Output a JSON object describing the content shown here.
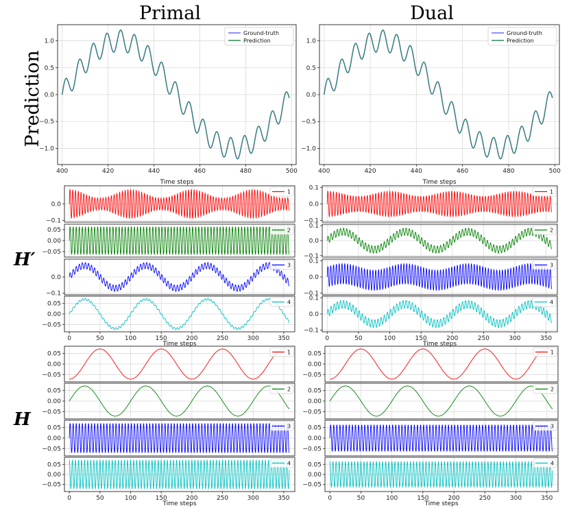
{
  "columns": [
    "Primal",
    "Dual"
  ],
  "ylabel": "Prediction",
  "row_labels": [
    "H′",
    "H"
  ],
  "colors": {
    "ground_truth": "#6b6bf5",
    "prediction": "#2e8b57",
    "series": [
      "#ff0000",
      "#008000",
      "#0000ff",
      "#00c0c0"
    ]
  },
  "chart_data": [
    {
      "id": "primal-prediction",
      "type": "line",
      "xlabel": "Time steps",
      "ylabel": "Prediction",
      "xlim": [
        398,
        502
      ],
      "ylim": [
        -1.3,
        1.3
      ],
      "xticks": [
        400,
        420,
        440,
        460,
        480,
        500
      ],
      "yticks": [
        -1.0,
        -0.5,
        0.0,
        0.5,
        1.0
      ],
      "ytick_labels": [
        "−1.0",
        "−0.5",
        "0.0",
        "0.5",
        "1.0"
      ],
      "x_range": [
        400,
        499
      ],
      "legend": "top-right",
      "grid": true,
      "series": [
        {
          "name": "Ground-truth",
          "color": "#6b6bf5",
          "formula": "sin(2π(x-400)/100)+0.2·sin(2π(x-400)/6)"
        },
        {
          "name": "Prediction",
          "color": "#2e8b57",
          "formula": "sin(2π(x-400)/100)+0.2·sin(2π(x-400)/6)"
        }
      ]
    },
    {
      "id": "dual-prediction",
      "type": "line",
      "xlabel": "Time steps",
      "ylabel": "",
      "xlim": [
        398,
        502
      ],
      "ylim": [
        -1.3,
        1.3
      ],
      "xticks": [
        400,
        420,
        440,
        460,
        480,
        500
      ],
      "yticks": [
        -1.0,
        -0.5,
        0.0,
        0.5,
        1.0
      ],
      "ytick_labels": [
        "−1.0",
        "−0.5",
        "0.0",
        "0.5",
        "1.0"
      ],
      "x_range": [
        400,
        499
      ],
      "legend": "top-right",
      "grid": true,
      "series": [
        {
          "name": "Ground-truth",
          "color": "#6b6bf5",
          "formula": "sin(2π(x-400)/100)+0.2·sin(2π(x-400)/6)"
        },
        {
          "name": "Prediction",
          "color": "#2e8b57",
          "formula": "sin(2π(x-400)/100)+0.2·sin(2π(x-400)/6)"
        }
      ]
    },
    {
      "id": "primal-Hp-1",
      "type": "line",
      "legend_label": "1",
      "color": "#ff0000",
      "xlim": [
        -8,
        368
      ],
      "ylim": [
        -0.11,
        0.11
      ],
      "yticks": [
        -0.1,
        0.0
      ],
      "ytick_labels": [
        "−0.1",
        "0.0"
      ],
      "x_range": [
        0,
        359
      ],
      "formula": "0.09·sin(2πx/4.5)·(0.7+0.3cos(2πx/100))"
    },
    {
      "id": "primal-Hp-2",
      "type": "line",
      "legend_label": "2",
      "color": "#008000",
      "xlim": [
        -8,
        368
      ],
      "ylim": [
        -0.075,
        0.075
      ],
      "yticks": [
        -0.05,
        0.0,
        0.05
      ],
      "ytick_labels": [
        "−0.05",
        "0.00",
        "0.05"
      ],
      "x_range": [
        0,
        359
      ],
      "formula": "0.065·sin(2πx/5)"
    },
    {
      "id": "primal-Hp-3",
      "type": "line",
      "legend_label": "3",
      "color": "#0000ff",
      "xlim": [
        -8,
        368
      ],
      "ylim": [
        -0.11,
        0.11
      ],
      "yticks": [
        -0.1,
        0.0
      ],
      "ytick_labels": [
        "−0.1",
        "0.0"
      ],
      "x_range": [
        0,
        359
      ],
      "formula": "0.07·sin(2πx/100)+0.02·sin(2πx/5)"
    },
    {
      "id": "primal-Hp-4",
      "type": "line",
      "legend_label": "4",
      "color": "#00c0c0",
      "xlim": [
        -8,
        368
      ],
      "ylim": [
        -0.085,
        0.085
      ],
      "yticks": [
        -0.05,
        0.0,
        0.05
      ],
      "ytick_labels": [
        "−0.05",
        "0.00",
        "0.05"
      ],
      "xticks": [
        0,
        50,
        100,
        150,
        200,
        250,
        300,
        350
      ],
      "xlabel": "Time steps",
      "x_range": [
        0,
        359
      ],
      "formula": "0.07·sin(2πx/100)+0.005·sin(2πx/5)"
    },
    {
      "id": "dual-Hp-1",
      "type": "line",
      "legend_label": "1",
      "color": "#ff0000",
      "xlim": [
        -8,
        368
      ],
      "ylim": [
        -0.11,
        0.11
      ],
      "yticks": [
        -0.1,
        0.0,
        0.1
      ],
      "ytick_labels": [
        "−0.1",
        "0.0",
        "0.1"
      ],
      "x_range": [
        0,
        359
      ],
      "formula": "0.08·sin(2πx/4.5)·(0.8+0.2cos(2πx/100))"
    },
    {
      "id": "dual-Hp-2",
      "type": "line",
      "legend_label": "2",
      "color": "#008000",
      "xlim": [
        -8,
        368
      ],
      "ylim": [
        -0.11,
        0.11
      ],
      "yticks": [
        -0.1,
        0.0,
        0.1
      ],
      "ytick_labels": [
        "−0.1",
        "0.0",
        "0.1"
      ],
      "x_range": [
        0,
        359
      ],
      "formula": "0.06·sin(2πx/100)+0.025·sin(2πx/5)"
    },
    {
      "id": "dual-Hp-3",
      "type": "line",
      "legend_label": "3",
      "color": "#0000ff",
      "xlim": [
        -8,
        368
      ],
      "ylim": [
        -0.11,
        0.11
      ],
      "yticks": [
        -0.1,
        0.0,
        0.1
      ],
      "ytick_labels": [
        "−0.1",
        "0.0",
        "0.1"
      ],
      "x_range": [
        0,
        359
      ],
      "formula": "0.065·sin(2πx/4.5)+0.02·sin(2πx/100)"
    },
    {
      "id": "dual-Hp-4",
      "type": "line",
      "legend_label": "4",
      "color": "#00c0c0",
      "xlim": [
        -8,
        368
      ],
      "ylim": [
        -0.11,
        0.11
      ],
      "yticks": [
        -0.1,
        0.0,
        0.1
      ],
      "ytick_labels": [
        "−0.1",
        "0.0",
        "0.1"
      ],
      "xticks": [
        0,
        50,
        100,
        150,
        200,
        250,
        300,
        350
      ],
      "xlabel": "Time steps",
      "x_range": [
        0,
        359
      ],
      "formula": "0.06·sin(2πx/100)+0.025·sin(2πx/5)"
    },
    {
      "id": "primal-H-1",
      "type": "line",
      "legend_label": "1",
      "color": "#ff0000",
      "xlim": [
        -8,
        368
      ],
      "ylim": [
        -0.085,
        0.085
      ],
      "yticks": [
        -0.05,
        0.0,
        0.05
      ],
      "ytick_labels": [
        "−0.05",
        "0.00",
        "0.05"
      ],
      "x_range": [
        0,
        359
      ],
      "formula": "-0.072·cos(2πx/100)"
    },
    {
      "id": "primal-H-2",
      "type": "line",
      "legend_label": "2",
      "color": "#008000",
      "xlim": [
        -8,
        368
      ],
      "ylim": [
        -0.085,
        0.085
      ],
      "yticks": [
        -0.05,
        0.0,
        0.05
      ],
      "ytick_labels": [
        "−0.05",
        "0.00",
        "0.05"
      ],
      "x_range": [
        0,
        359
      ],
      "formula": "0.072·sin(2πx/100)"
    },
    {
      "id": "primal-H-3",
      "type": "line",
      "legend_label": "3",
      "color": "#0000ff",
      "xlim": [
        -8,
        368
      ],
      "ylim": [
        -0.085,
        0.085
      ],
      "yticks": [
        -0.05,
        0.0,
        0.05
      ],
      "ytick_labels": [
        "−0.05",
        "0.00",
        "0.05"
      ],
      "x_range": [
        0,
        359
      ],
      "formula": "0.072·sin(2πx/5)"
    },
    {
      "id": "primal-H-4",
      "type": "line",
      "legend_label": "4",
      "color": "#00c0c0",
      "xlim": [
        -8,
        368
      ],
      "ylim": [
        -0.085,
        0.085
      ],
      "yticks": [
        -0.05,
        0.0,
        0.05
      ],
      "ytick_labels": [
        "−0.05",
        "0.00",
        "0.05"
      ],
      "xticks": [
        0,
        50,
        100,
        150,
        200,
        250,
        300,
        350
      ],
      "xlabel": "Time steps",
      "x_range": [
        0,
        359
      ],
      "formula": "0.072·cos(2πx/5)"
    },
    {
      "id": "dual-H-1",
      "type": "line",
      "legend_label": "1",
      "color": "#ff0000",
      "xlim": [
        -8,
        368
      ],
      "ylim": [
        -0.085,
        0.085
      ],
      "yticks": [
        -0.05,
        0.0,
        0.05
      ],
      "ytick_labels": [
        "−0.05",
        "0.00",
        "0.05"
      ],
      "x_range": [
        0,
        359
      ],
      "formula": "-0.072·cos(2πx/100)"
    },
    {
      "id": "dual-H-2",
      "type": "line",
      "legend_label": "2",
      "color": "#008000",
      "xlim": [
        -8,
        368
      ],
      "ylim": [
        -0.085,
        0.085
      ],
      "yticks": [
        -0.05,
        0.0,
        0.05
      ],
      "ytick_labels": [
        "−0.05",
        "0.00",
        "0.05"
      ],
      "x_range": [
        0,
        359
      ],
      "formula": "0.072·sin(2πx/100)"
    },
    {
      "id": "dual-H-3",
      "type": "line",
      "legend_label": "3",
      "color": "#0000ff",
      "xlim": [
        -8,
        368
      ],
      "ylim": [
        -0.085,
        0.085
      ],
      "yticks": [
        -0.05,
        0.0,
        0.05
      ],
      "ytick_labels": [
        "−0.05",
        "0.00",
        "0.05"
      ],
      "x_range": [
        0,
        359
      ],
      "formula": "0.065·sin(2πx/5)"
    },
    {
      "id": "dual-H-4",
      "type": "line",
      "legend_label": "4",
      "color": "#00c0c0",
      "xlim": [
        -8,
        368
      ],
      "ylim": [
        -0.085,
        0.085
      ],
      "yticks": [
        -0.05,
        0.0,
        0.05
      ],
      "ytick_labels": [
        "−0.05",
        "0.00",
        "0.05"
      ],
      "xticks": [
        0,
        50,
        100,
        150,
        200,
        250,
        300,
        350
      ],
      "xlabel": "Time steps",
      "x_range": [
        0,
        359
      ],
      "formula": "0.065·cos(2πx/5)"
    }
  ]
}
